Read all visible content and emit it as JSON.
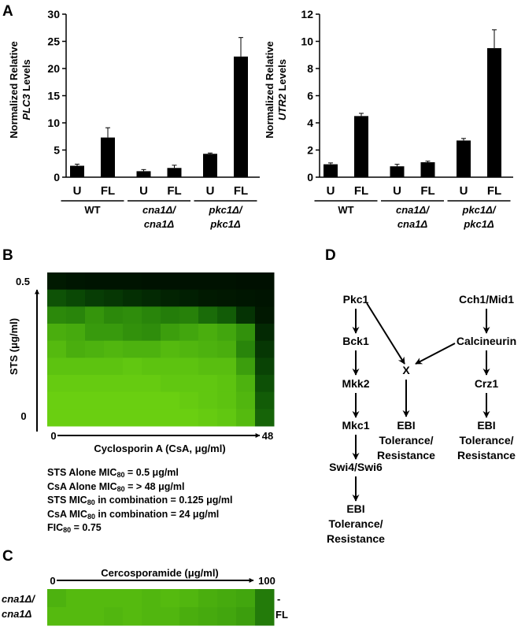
{
  "panel_letters": {
    "a": "A",
    "b": "B",
    "c": "C",
    "d": "D"
  },
  "chart_data": [
    {
      "type": "bar",
      "ylabel_line1": "Normalized Relative",
      "ylabel_gene": "PLC3",
      "ylabel_suffix": "Levels",
      "ylim": [
        0,
        30
      ],
      "yticks": [
        "0",
        "5",
        "10",
        "15",
        "20",
        "25",
        "30"
      ],
      "categories": [
        "U",
        "FL",
        "U",
        "FL",
        "U",
        "FL"
      ],
      "values": [
        2.1,
        7.3,
        1.1,
        1.7,
        4.3,
        22.2
      ],
      "errors": [
        0.3,
        1.8,
        0.3,
        0.5,
        0.15,
        3.5
      ],
      "groups": [
        {
          "line1": "WT",
          "line2": ""
        },
        {
          "line1": "cna1Δ/",
          "line2": "cna1Δ"
        },
        {
          "line1": "pkc1Δ/",
          "line2": "pkc1Δ"
        }
      ]
    },
    {
      "type": "bar",
      "ylabel_line1": "Normalized Relative",
      "ylabel_gene": "UTR2",
      "ylabel_suffix": "Levels",
      "ylim": [
        0,
        12
      ],
      "yticks": [
        "0",
        "2",
        "4",
        "6",
        "8",
        "10",
        "12"
      ],
      "categories": [
        "U",
        "FL",
        "U",
        "FL",
        "U",
        "FL"
      ],
      "values": [
        0.95,
        4.5,
        0.8,
        1.1,
        2.7,
        9.5
      ],
      "errors": [
        0.1,
        0.2,
        0.15,
        0.08,
        0.15,
        1.35
      ],
      "groups": [
        {
          "line1": "WT",
          "line2": ""
        },
        {
          "line1": "cna1Δ/",
          "line2": "cna1Δ"
        },
        {
          "line1": "pkc1Δ/",
          "line2": "pkc1Δ"
        }
      ]
    },
    {
      "type": "heatmap",
      "ylabel": "STS (μg/ml)",
      "y_top_tick": "0.5",
      "y_bottom_tick": "0",
      "xlabel": "Cyclosporin A (CsA, μg/ml)",
      "x_left_tick": "0",
      "x_right_tick": "48",
      "rows": [
        [
          0.08,
          0.06,
          0.05,
          0.05,
          0.05,
          0.04,
          0.04,
          0.04,
          0.04,
          0.04,
          0.03,
          0.03
        ],
        [
          0.35,
          0.3,
          0.25,
          0.22,
          0.18,
          0.15,
          0.12,
          0.1,
          0.08,
          0.07,
          0.06,
          0.05
        ],
        [
          0.62,
          0.6,
          0.68,
          0.62,
          0.64,
          0.6,
          0.56,
          0.58,
          0.48,
          0.4,
          0.2,
          0.07
        ],
        [
          0.8,
          0.78,
          0.7,
          0.7,
          0.66,
          0.64,
          0.72,
          0.76,
          0.8,
          0.76,
          0.66,
          0.15
        ],
        [
          0.86,
          0.8,
          0.82,
          0.84,
          0.82,
          0.82,
          0.86,
          0.84,
          0.82,
          0.8,
          0.6,
          0.22
        ],
        [
          0.9,
          0.9,
          0.9,
          0.9,
          0.92,
          0.9,
          0.9,
          0.9,
          0.88,
          0.88,
          0.72,
          0.28
        ],
        [
          0.94,
          0.94,
          0.94,
          0.94,
          0.94,
          0.94,
          0.92,
          0.92,
          0.92,
          0.9,
          0.82,
          0.34
        ],
        [
          0.96,
          0.96,
          0.96,
          0.96,
          0.96,
          0.96,
          0.96,
          0.94,
          0.92,
          0.9,
          0.84,
          0.4
        ],
        [
          0.96,
          0.96,
          0.96,
          0.96,
          0.96,
          0.96,
          0.96,
          0.96,
          0.94,
          0.92,
          0.86,
          0.44
        ]
      ]
    },
    {
      "type": "heatmap",
      "xlabel": "Cercosporamide (μg/ml)",
      "x_left_tick": "0",
      "x_right_tick": "100",
      "row_labels": [
        "-",
        "FL"
      ],
      "strain_line1": "cna1Δ/",
      "strain_line2": "cna1Δ",
      "rows": [
        [
          0.82,
          0.86,
          0.86,
          0.86,
          0.86,
          0.84,
          0.86,
          0.84,
          0.8,
          0.78,
          0.76,
          0.55
        ],
        [
          0.86,
          0.86,
          0.86,
          0.84,
          0.86,
          0.84,
          0.84,
          0.8,
          0.78,
          0.76,
          0.72,
          0.55
        ]
      ]
    }
  ],
  "mic_stats": {
    "line1_pre": "STS Alone MIC",
    "line1_sub": "80",
    "line1_post": " = 0.5 μg/ml",
    "line2_pre": "CsA Alone MIC",
    "line2_sub": "80",
    "line2_post": " = > 48 μg/ml",
    "line3_pre": "STS MIC",
    "line3_sub": "80",
    "line3_post": " in combination = 0.125 μg/ml",
    "line4_pre": "CsA MIC",
    "line4_sub": "80",
    "line4_post": " in combination = 24 μg/ml",
    "line5_pre": "FIC",
    "line5_sub": "80",
    "line5_post": " = 0.75"
  },
  "pathway": {
    "pkc1": "Pkc1",
    "bck1": "Bck1",
    "mkk2": "Mkk2",
    "mkc1": "Mkc1",
    "swi": "Swi4/Swi6",
    "cch1": "Cch1/Mid1",
    "calcineurin": "Calcineurin",
    "crz1": "Crz1",
    "x": "X",
    "ebi": "EBI",
    "tolerance": "Tolerance/",
    "resistance": "Resistance"
  }
}
